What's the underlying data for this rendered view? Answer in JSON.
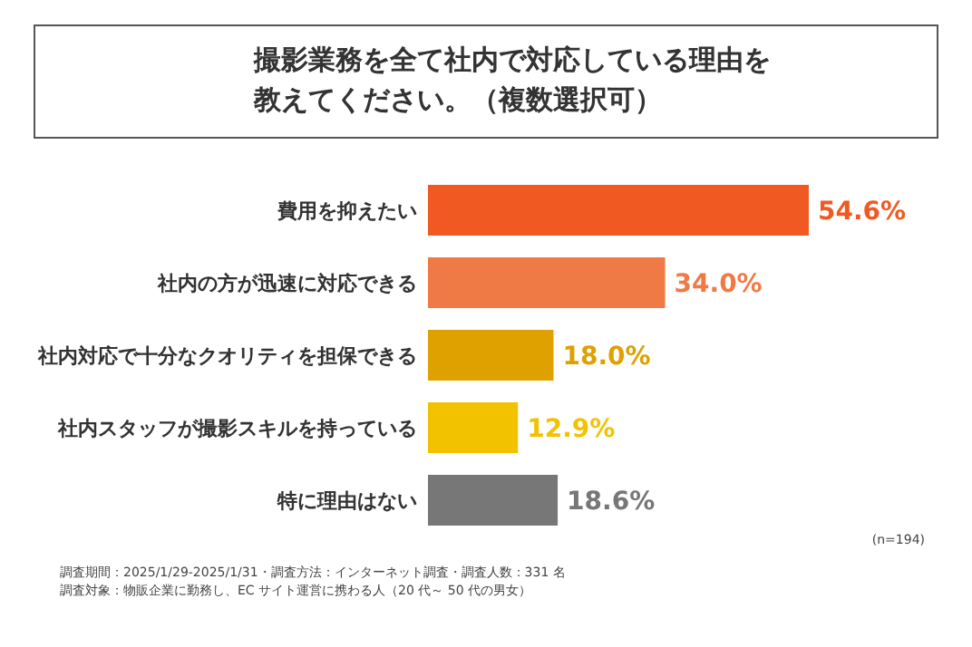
{
  "chart_data": {
    "type": "bar",
    "orientation": "horizontal",
    "title": "撮影業務を全て社内で対応している理由を教えてください。（複数選択可）",
    "categories": [
      "費用を抑えたい",
      "社内の方が迅速に対応できる",
      "社内対応で十分なクオリティを担保できる",
      "社内スタッフが撮影スキルを持っている",
      "特に理由はない"
    ],
    "values": [
      54.6,
      34.0,
      18.0,
      12.9,
      18.6
    ],
    "value_labels": [
      "54.6%",
      "34.0%",
      "18.0%",
      "12.9%",
      "18.6%"
    ],
    "colors": [
      "#f05a22",
      "#f07a45",
      "#dea100",
      "#f2c200",
      "#777777"
    ],
    "annotations": [
      "(n=194)",
      "調査期間：2025/1/29-2025/1/31・調査方法：インターネット調査・調査人数：331 名",
      "調査対象：物販企業に勤務し、EC サイト運営に携わる人（20 代～ 50 代の男女）"
    ]
  }
}
